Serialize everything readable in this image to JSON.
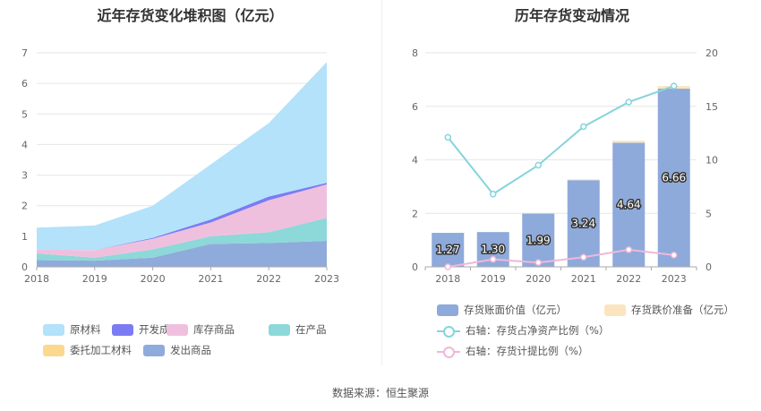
{
  "left_chart": {
    "title": "近年存货变化堆积图（亿元）",
    "chart_data": {
      "type": "area",
      "stacked": true,
      "x": [
        "2018",
        "2019",
        "2020",
        "2021",
        "2022",
        "2023"
      ],
      "ylim": [
        0,
        7
      ],
      "yticks": [
        "0",
        "1",
        "2",
        "3",
        "4",
        "5",
        "6",
        "7"
      ],
      "grid": true,
      "legend_position": "bottom",
      "series": [
        {
          "name": "发出商品",
          "color": "#8fabdb",
          "values": [
            0.22,
            0.2,
            0.3,
            0.75,
            0.78,
            0.85
          ]
        },
        {
          "name": "委托加工材料",
          "color": "#fcd88f",
          "values": [
            0.0,
            0.0,
            0.0,
            0.0,
            0.0,
            0.0
          ]
        },
        {
          "name": "在产品",
          "color": "#8dd8d8",
          "values": [
            0.22,
            0.1,
            0.27,
            0.25,
            0.35,
            0.75
          ]
        },
        {
          "name": "库存商品",
          "color": "#efc0de",
          "values": [
            0.12,
            0.25,
            0.35,
            0.45,
            1.05,
            1.1
          ]
        },
        {
          "name": "开发成本",
          "color": "#7b7cf3",
          "values": [
            0.0,
            0.0,
            0.03,
            0.1,
            0.12,
            0.05
          ]
        },
        {
          "name": "原材料",
          "color": "#b3e2fa",
          "values": [
            0.72,
            0.8,
            1.05,
            1.8,
            2.4,
            3.95
          ]
        }
      ],
      "legend_order": [
        "原材料",
        "开发成本",
        "库存商品",
        "在产品",
        "委托加工材料",
        "发出商品"
      ]
    }
  },
  "right_chart": {
    "title": "历年存货变动情况",
    "chart_data": {
      "type": "bar",
      "categories": [
        "2018",
        "2019",
        "2020",
        "2021",
        "2022",
        "2023"
      ],
      "ylim": [
        0,
        8
      ],
      "yticks_left": [
        "0",
        "2",
        "4",
        "6",
        "8"
      ],
      "y2lim": [
        0,
        20
      ],
      "yticks_right": [
        "0",
        "5",
        "10",
        "15",
        "20"
      ],
      "grid": true,
      "legend_position": "bottom",
      "series": [
        {
          "name": "存货账面价值（亿元）",
          "type": "bar",
          "axis": "left",
          "color": "#8eaadb",
          "values": [
            1.27,
            1.3,
            1.99,
            3.24,
            4.64,
            6.66
          ],
          "labels": [
            "1.27",
            "1.30",
            "1.99",
            "3.24",
            "4.64",
            "6.66"
          ]
        },
        {
          "name": "存货跌价准备（亿元）",
          "type": "bar",
          "axis": "left",
          "color": "#fbe5c0",
          "values": [
            0.0,
            0.0,
            0.0,
            0.03,
            0.08,
            0.1
          ]
        },
        {
          "name": "右轴：存货占净资产比例（%）",
          "type": "line",
          "axis": "right",
          "color": "#86d4dc",
          "values": [
            12.1,
            6.8,
            9.5,
            13.1,
            15.4,
            16.9
          ]
        },
        {
          "name": "右轴：存货计提比例（%）",
          "type": "line",
          "axis": "right",
          "color": "#f0b8d8",
          "values": [
            0.0,
            0.7,
            0.4,
            0.9,
            1.6,
            1.1
          ]
        }
      ]
    }
  },
  "source": "数据来源：恒生聚源"
}
